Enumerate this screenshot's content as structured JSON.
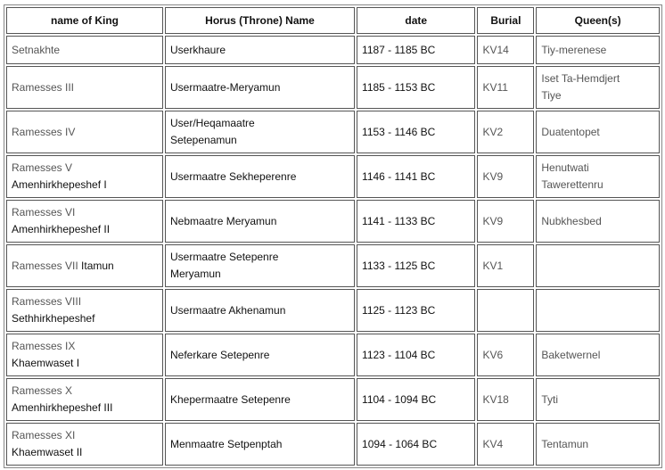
{
  "headers": [
    "name of King",
    "Horus (Throne) Name",
    "date",
    "Burial",
    "Queen(s)"
  ],
  "rows": [
    {
      "king": "Setnakhte",
      "king2": "",
      "horus": [
        "Userkhaure"
      ],
      "date": "1187 - 1185 BC",
      "burial": "KV14",
      "queens": [
        "Tiy-merenese"
      ]
    },
    {
      "king": "Ramesses III",
      "king2": "",
      "horus": [
        "Usermaatre-Meryamun"
      ],
      "date": "1185 - 1153 BC",
      "burial": "KV11",
      "queens": [
        "Iset Ta-Hemdjert",
        "Tiye"
      ]
    },
    {
      "king": "Ramesses IV",
      "king2": "",
      "horus": [
        "User/Heqamaatre",
        "Setepenamun"
      ],
      "date": "1153 - 1146 BC",
      "burial": "KV2",
      "queens": [
        "Duatentopet"
      ]
    },
    {
      "king": "Ramesses V",
      "king2": "Amenhirkhepeshef I",
      "horus": [
        "Usermaatre Sekheperenre"
      ],
      "date": "1146 - 1141 BC",
      "burial": "KV9",
      "queens": [
        "Henutwati",
        "Tawerettenru"
      ]
    },
    {
      "king": "Ramesses VI",
      "king2": "Amenhirkhepeshef II",
      "horus": [
        "Nebmaatre Meryamun"
      ],
      "date": "1141 - 1133 BC",
      "burial": "KV9",
      "queens": [
        "Nubkhesbed"
      ]
    },
    {
      "king": "Ramesses VII",
      "king2": "Itamun",
      "inline": true,
      "horus": [
        "Usermaatre Setepenre",
        "Meryamun"
      ],
      "date": "1133 - 1125 BC",
      "burial": "KV1",
      "queens": []
    },
    {
      "king": "Ramesses VIII",
      "king2": "Sethhirkhepeshef",
      "horus": [
        "Usermaatre Akhenamun"
      ],
      "date": "1125 - 1123 BC",
      "burial": "",
      "queens": []
    },
    {
      "king": "Ramesses IX",
      "king2": "Khaemwaset I",
      "horus": [
        "Neferkare Setepenre"
      ],
      "date": "1123 - 1104 BC",
      "burial": "KV6",
      "queens": [
        "Baketwernel"
      ]
    },
    {
      "king": "Ramesses X",
      "king2": "Amenhirkhepeshef III",
      "horus": [
        "Khepermaatre Setepenre"
      ],
      "date": "1104 - 1094 BC",
      "burial": "KV18",
      "queens": [
        "Tyti"
      ]
    },
    {
      "king": "Ramesses XI",
      "king2": "Khaemwaset II",
      "horus": [
        "Menmaatre Setpenptah"
      ],
      "date": "1094 - 1064 BC",
      "burial": "KV4",
      "queens": [
        "Tentamun"
      ]
    }
  ]
}
